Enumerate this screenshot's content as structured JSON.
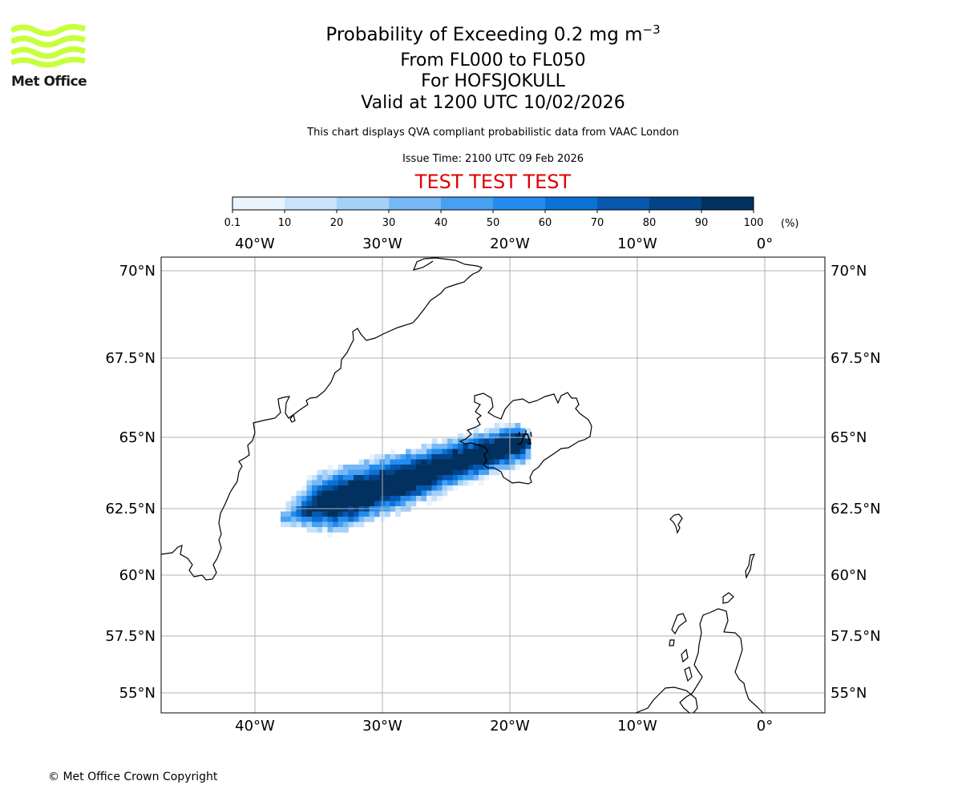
{
  "logo": {
    "text": "Met Office",
    "color": "#c8ff3c"
  },
  "header": {
    "title_main": "Probability of Exceeding 0.2 mg m",
    "title_exponent": "−3",
    "flight_levels": "From FL000 to FL050",
    "volcano": "For HOFSJOKULL",
    "valid": "Valid at 1200 UTC 10/02/2026",
    "description": "This chart displays QVA compliant probabilistic data from VAAC London",
    "issue_time": "Issue Time: 2100 UTC 09 Feb 2026",
    "test_banner": "TEST TEST TEST"
  },
  "colorbar": {
    "ticks": [
      "0.1",
      "10",
      "20",
      "30",
      "40",
      "50",
      "60",
      "70",
      "80",
      "90",
      "100"
    ],
    "unit": "(%)",
    "colors": [
      "#eaf4fe",
      "#c8e3fb",
      "#a5d1f8",
      "#76b8f5",
      "#48a0f2",
      "#238cee",
      "#0a72d4",
      "#0658b0",
      "#034387",
      "#02305f"
    ]
  },
  "map": {
    "lon_labels": [
      "40°W",
      "30°W",
      "20°W",
      "10°W",
      "0°"
    ],
    "lon_values": [
      -40,
      -30,
      -20,
      -10,
      0
    ],
    "lat_labels": [
      "70°N",
      "67.5°N",
      "65°N",
      "62.5°N",
      "60°N",
      "57.5°N",
      "55°N"
    ],
    "lat_values": [
      70,
      67.5,
      65,
      62.5,
      60,
      57.5,
      55
    ],
    "gridline_color": "#b0b0b0"
  },
  "footer": {
    "copyright": "© Met Office Crown Copyright"
  }
}
